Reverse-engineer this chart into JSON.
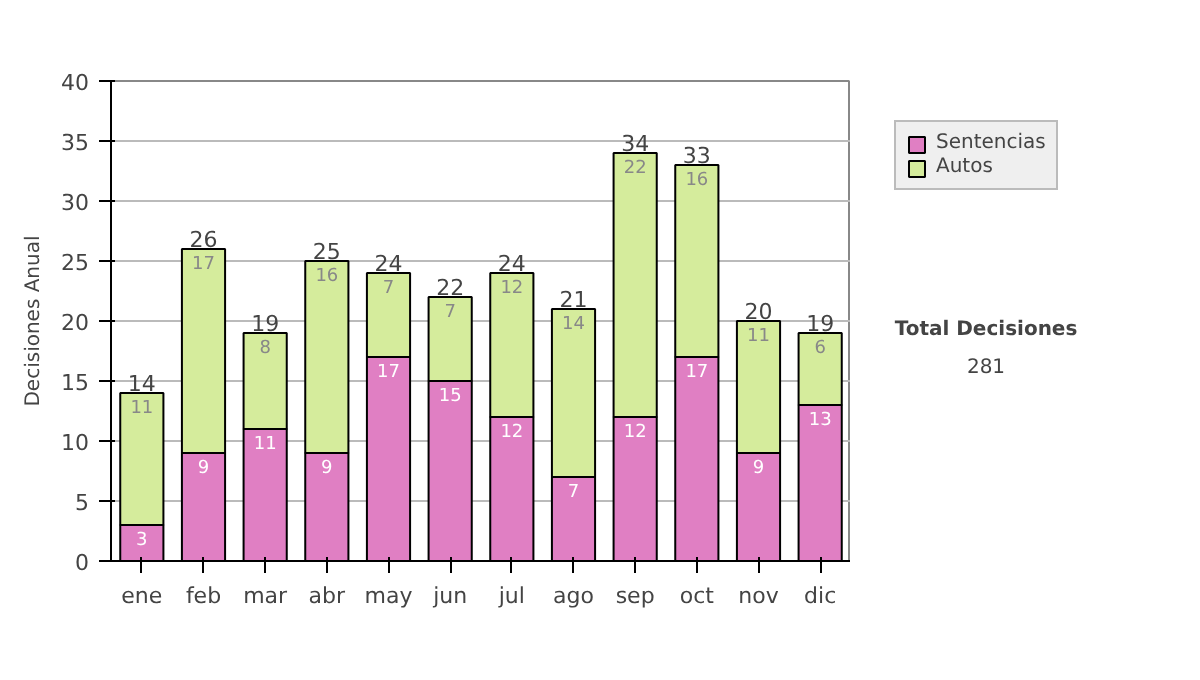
{
  "chart_data": {
    "type": "bar",
    "stacked": true,
    "ylabel": "Decisiones Anual",
    "categories": [
      "ene",
      "feb",
      "mar",
      "abr",
      "may",
      "jun",
      "jul",
      "ago",
      "sep",
      "oct",
      "nov",
      "dic"
    ],
    "series": [
      {
        "name": "Sentencias",
        "color": "#e07fc3",
        "values": [
          3,
          9,
          11,
          9,
          17,
          15,
          12,
          7,
          12,
          17,
          9,
          13
        ]
      },
      {
        "name": "Autos",
        "color": "#d5ec9c",
        "values": [
          11,
          17,
          8,
          16,
          7,
          7,
          12,
          14,
          22,
          16,
          11,
          6
        ]
      }
    ],
    "ylim": [
      0,
      40
    ],
    "yticks": [
      0,
      5,
      10,
      15,
      20,
      25,
      30,
      35,
      40
    ],
    "grid": "y",
    "legend": "right",
    "data_labels": true,
    "totals": [
      "14",
      "26",
      "19",
      "25",
      "24",
      "22",
      "24",
      "21",
      "34",
      "33",
      "20",
      "19"
    ],
    "annotations": [
      "Total Decisiones",
      "281"
    ]
  }
}
